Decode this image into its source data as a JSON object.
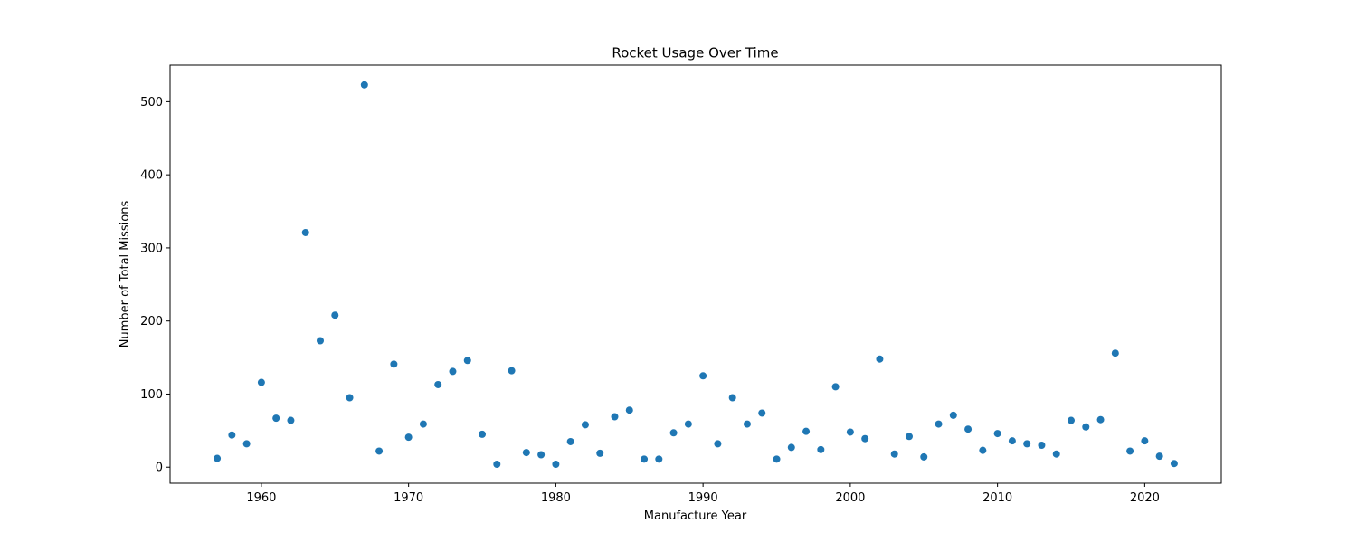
{
  "chart_data": {
    "type": "scatter",
    "title": "Rocket Usage Over Time",
    "xlabel": "Manufacture Year",
    "ylabel": "Number of Total Missions",
    "xlim": [
      1953.8,
      2025.2
    ],
    "ylim": [
      -22,
      550
    ],
    "xticks": [
      1960,
      1970,
      1980,
      1990,
      2000,
      2010,
      2020
    ],
    "yticks": [
      0,
      100,
      200,
      300,
      400,
      500
    ],
    "grid": false,
    "legend": "none",
    "color": "#1f77b4",
    "points": [
      {
        "x": 1957,
        "y": 12
      },
      {
        "x": 1958,
        "y": 44
      },
      {
        "x": 1959,
        "y": 32
      },
      {
        "x": 1960,
        "y": 116
      },
      {
        "x": 1961,
        "y": 67
      },
      {
        "x": 1962,
        "y": 64
      },
      {
        "x": 1963,
        "y": 321
      },
      {
        "x": 1964,
        "y": 173
      },
      {
        "x": 1965,
        "y": 208
      },
      {
        "x": 1966,
        "y": 95
      },
      {
        "x": 1967,
        "y": 523
      },
      {
        "x": 1968,
        "y": 22
      },
      {
        "x": 1969,
        "y": 141
      },
      {
        "x": 1970,
        "y": 41
      },
      {
        "x": 1971,
        "y": 59
      },
      {
        "x": 1972,
        "y": 113
      },
      {
        "x": 1973,
        "y": 131
      },
      {
        "x": 1974,
        "y": 146
      },
      {
        "x": 1975,
        "y": 45
      },
      {
        "x": 1976,
        "y": 4
      },
      {
        "x": 1977,
        "y": 132
      },
      {
        "x": 1978,
        "y": 20
      },
      {
        "x": 1979,
        "y": 17
      },
      {
        "x": 1980,
        "y": 4
      },
      {
        "x": 1981,
        "y": 35
      },
      {
        "x": 1982,
        "y": 58
      },
      {
        "x": 1983,
        "y": 19
      },
      {
        "x": 1984,
        "y": 69
      },
      {
        "x": 1985,
        "y": 78
      },
      {
        "x": 1986,
        "y": 11
      },
      {
        "x": 1987,
        "y": 11
      },
      {
        "x": 1988,
        "y": 47
      },
      {
        "x": 1989,
        "y": 59
      },
      {
        "x": 1990,
        "y": 125
      },
      {
        "x": 1991,
        "y": 32
      },
      {
        "x": 1992,
        "y": 95
      },
      {
        "x": 1993,
        "y": 59
      },
      {
        "x": 1994,
        "y": 74
      },
      {
        "x": 1995,
        "y": 11
      },
      {
        "x": 1996,
        "y": 27
      },
      {
        "x": 1997,
        "y": 49
      },
      {
        "x": 1998,
        "y": 24
      },
      {
        "x": 1999,
        "y": 110
      },
      {
        "x": 2000,
        "y": 48
      },
      {
        "x": 2001,
        "y": 39
      },
      {
        "x": 2002,
        "y": 148
      },
      {
        "x": 2003,
        "y": 18
      },
      {
        "x": 2004,
        "y": 42
      },
      {
        "x": 2005,
        "y": 14
      },
      {
        "x": 2006,
        "y": 59
      },
      {
        "x": 2007,
        "y": 71
      },
      {
        "x": 2008,
        "y": 52
      },
      {
        "x": 2009,
        "y": 23
      },
      {
        "x": 2010,
        "y": 46
      },
      {
        "x": 2011,
        "y": 36
      },
      {
        "x": 2012,
        "y": 32
      },
      {
        "x": 2013,
        "y": 30
      },
      {
        "x": 2014,
        "y": 18
      },
      {
        "x": 2015,
        "y": 64
      },
      {
        "x": 2016,
        "y": 55
      },
      {
        "x": 2017,
        "y": 65
      },
      {
        "x": 2018,
        "y": 156
      },
      {
        "x": 2019,
        "y": 22
      },
      {
        "x": 2020,
        "y": 36
      },
      {
        "x": 2021,
        "y": 15
      },
      {
        "x": 2022,
        "y": 5
      }
    ]
  }
}
